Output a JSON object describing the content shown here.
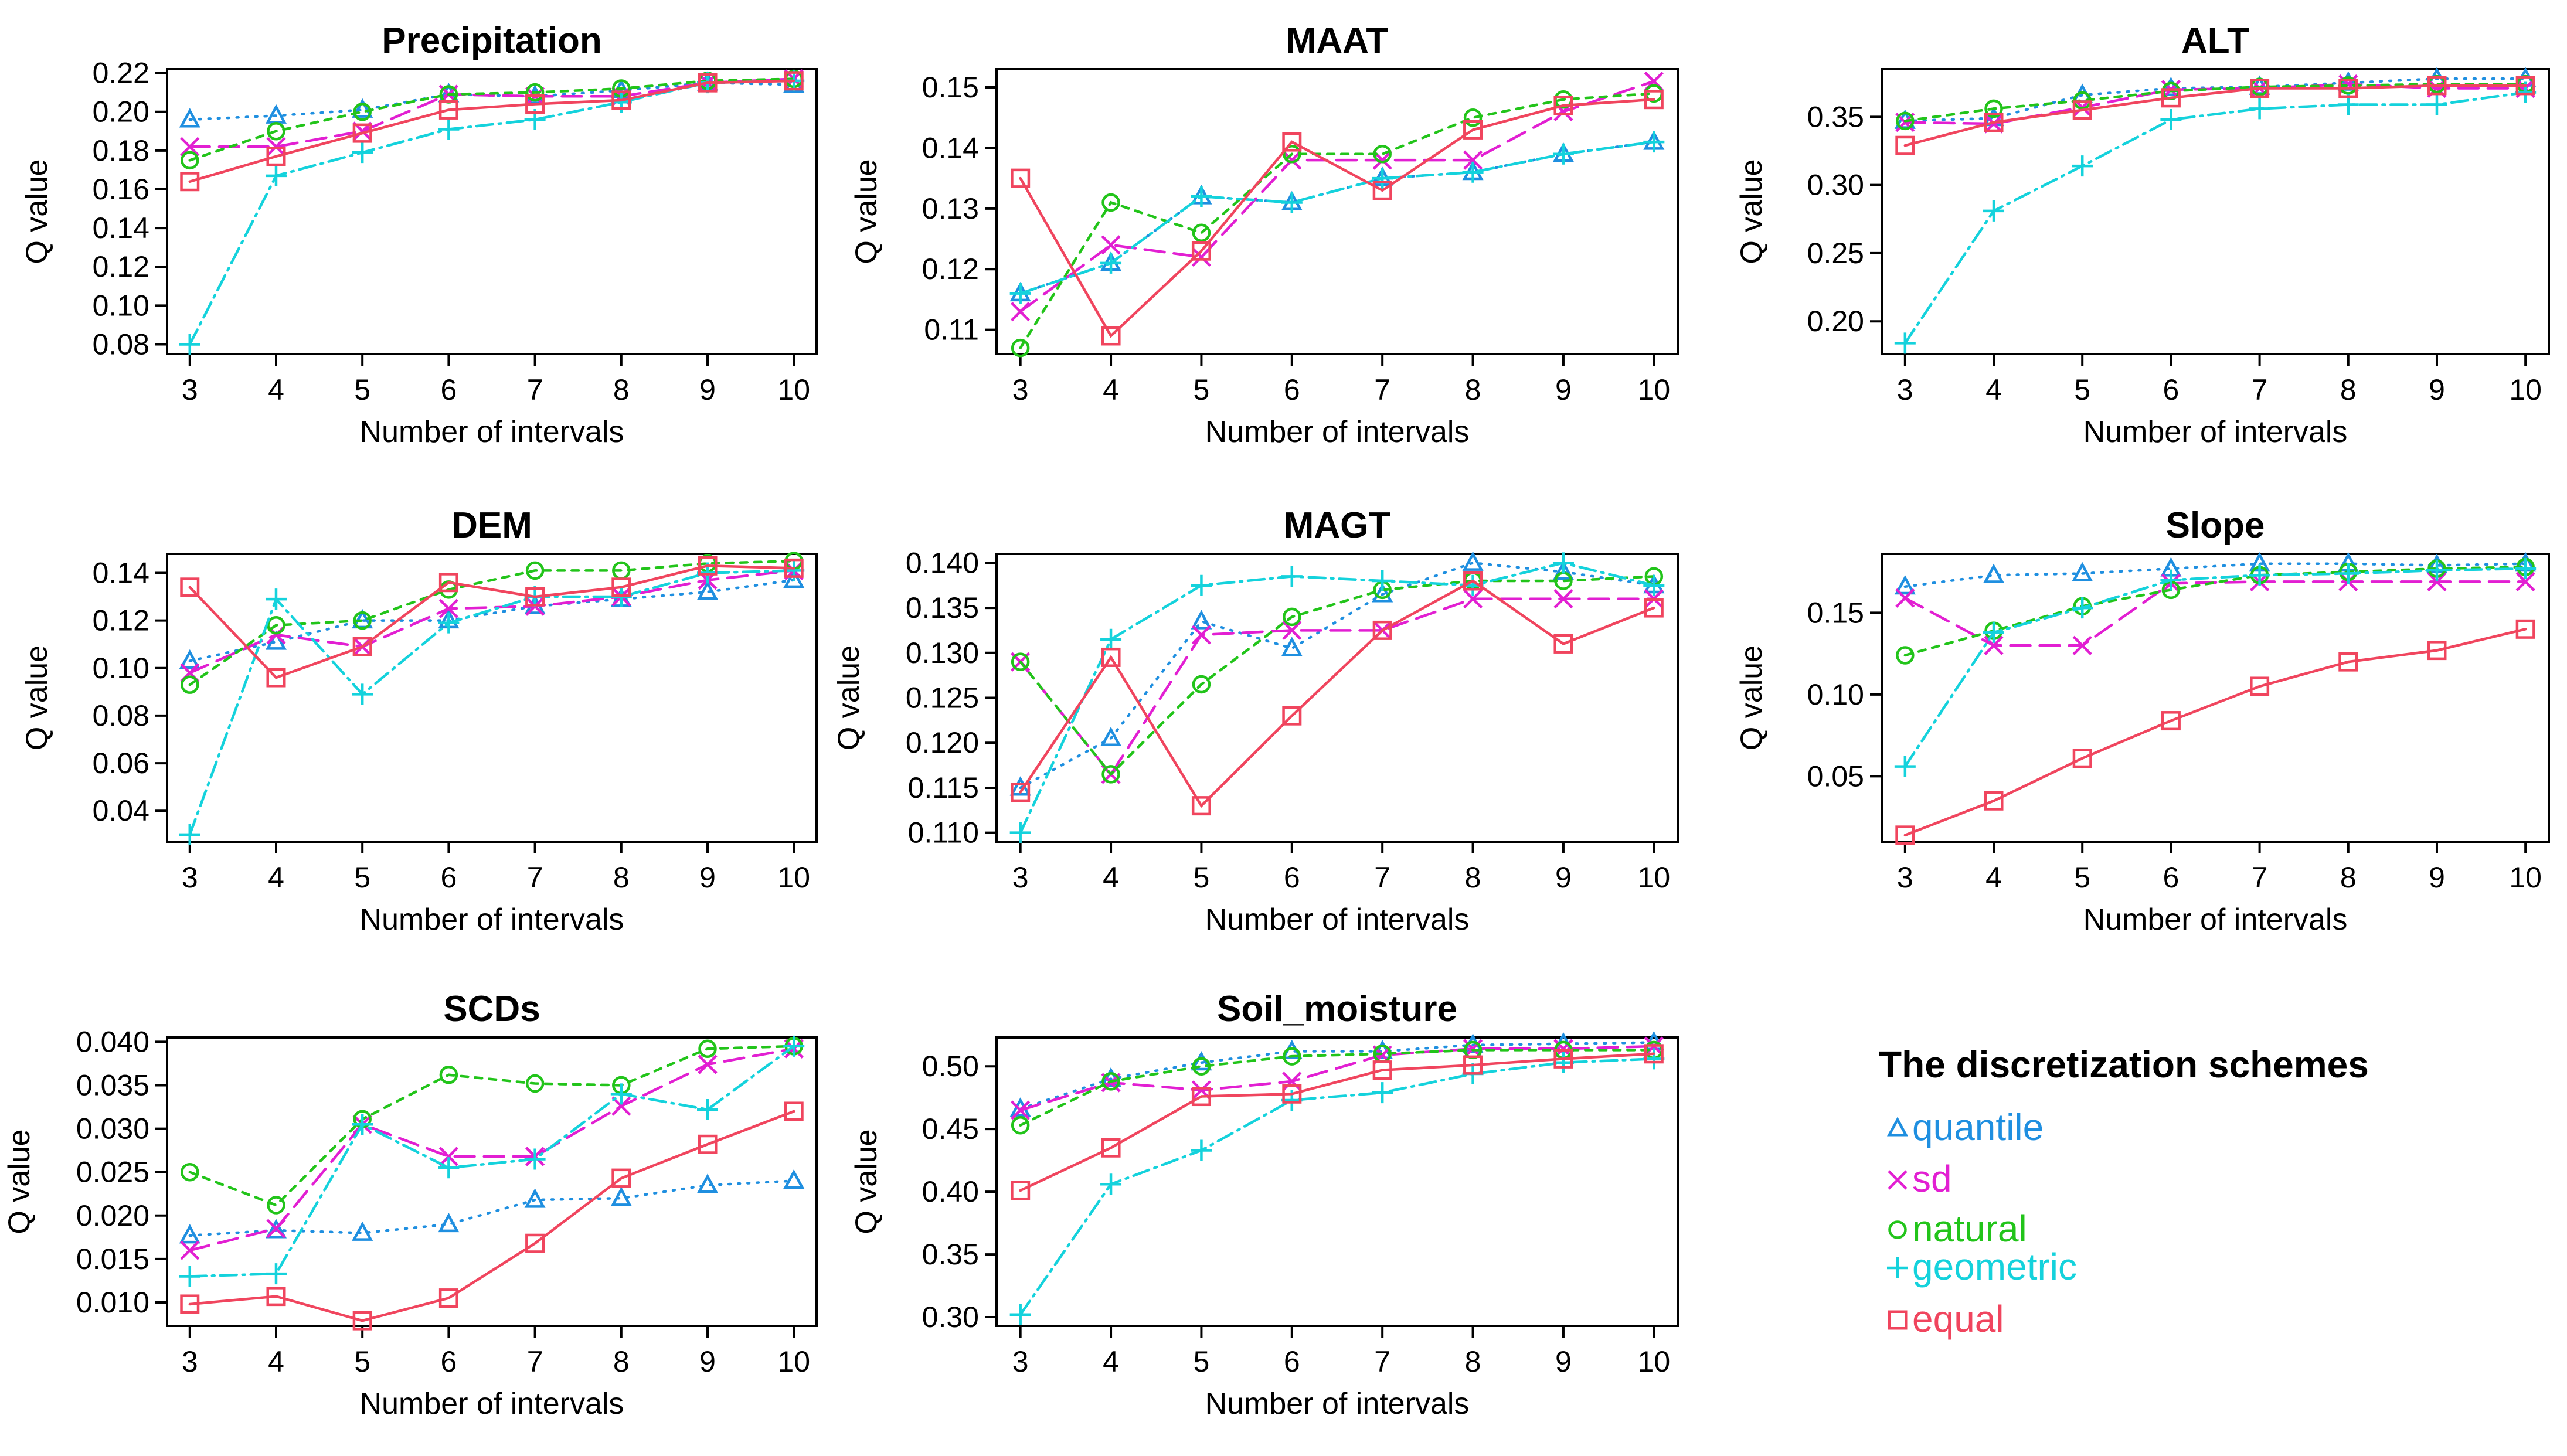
{
  "colors": {
    "quantile": "#1f8fe0",
    "sd": "#e21fd2",
    "natural": "#22c41a",
    "geometric": "#14d2dc",
    "equal": "#f0455e"
  },
  "legend": {
    "title": "The discretization schemes",
    "items": [
      {
        "key": "quantile",
        "label": "quantile",
        "marker": "triangle"
      },
      {
        "key": "sd",
        "label": "sd",
        "marker": "cross"
      },
      {
        "key": "natural",
        "label": "natural",
        "marker": "circle"
      },
      {
        "key": "geometric",
        "label": "geometric",
        "marker": "plus"
      },
      {
        "key": "equal",
        "label": "equal",
        "marker": "square"
      }
    ]
  },
  "chart_data": [
    {
      "type": "line",
      "title": "Precipitation",
      "xlabel": "Number of intervals",
      "ylabel": "Q value",
      "x": [
        3,
        4,
        5,
        6,
        7,
        8,
        9,
        10
      ],
      "ylim": [
        0.075,
        0.222
      ],
      "yticks": [
        "0.08",
        "0.10",
        "0.12",
        "0.14",
        "0.16",
        "0.18",
        "0.20",
        "0.22"
      ],
      "series": [
        {
          "name": "quantile",
          "values": [
            0.196,
            0.198,
            0.201,
            0.209,
            0.208,
            0.211,
            0.215,
            0.214
          ]
        },
        {
          "name": "sd",
          "values": [
            0.182,
            0.182,
            0.19,
            0.209,
            0.208,
            0.208,
            0.215,
            0.217
          ]
        },
        {
          "name": "natural",
          "values": [
            0.175,
            0.19,
            0.2,
            0.209,
            0.21,
            0.212,
            0.216,
            0.217
          ]
        },
        {
          "name": "geometric",
          "values": [
            0.08,
            0.167,
            0.179,
            0.191,
            0.196,
            0.205,
            0.215,
            0.216
          ]
        },
        {
          "name": "equal",
          "values": [
            0.164,
            0.177,
            0.189,
            0.201,
            0.204,
            0.206,
            0.215,
            0.216
          ]
        }
      ]
    },
    {
      "type": "line",
      "title": "MAAT",
      "xlabel": "Number of intervals",
      "ylabel": "Q value",
      "x": [
        3,
        4,
        5,
        6,
        7,
        8,
        9,
        10
      ],
      "ylim": [
        0.106,
        0.153
      ],
      "yticks": [
        "0.11",
        "0.12",
        "0.13",
        "0.14",
        "0.15"
      ],
      "series": [
        {
          "name": "quantile",
          "values": [
            0.116,
            0.121,
            0.132,
            0.131,
            0.135,
            0.136,
            0.139,
            0.141
          ]
        },
        {
          "name": "sd",
          "values": [
            0.113,
            0.124,
            0.122,
            0.138,
            0.138,
            0.138,
            0.146,
            0.151
          ]
        },
        {
          "name": "natural",
          "values": [
            0.107,
            0.131,
            0.126,
            0.139,
            0.139,
            0.145,
            0.148,
            0.149
          ]
        },
        {
          "name": "geometric",
          "values": [
            0.116,
            0.121,
            0.132,
            0.131,
            0.135,
            0.136,
            0.139,
            0.141
          ]
        },
        {
          "name": "equal",
          "values": [
            0.135,
            0.109,
            0.123,
            0.141,
            0.133,
            0.143,
            0.147,
            0.148
          ]
        }
      ]
    },
    {
      "type": "line",
      "title": "ALT",
      "xlabel": "Number of intervals",
      "ylabel": "Q value",
      "x": [
        3,
        4,
        5,
        6,
        7,
        8,
        9,
        10
      ],
      "ylim": [
        0.176,
        0.385
      ],
      "yticks": [
        "0.20",
        "0.25",
        "0.30",
        "0.35"
      ],
      "series": [
        {
          "name": "quantile",
          "values": [
            0.347,
            0.349,
            0.366,
            0.371,
            0.372,
            0.375,
            0.378,
            0.378
          ]
        },
        {
          "name": "sd",
          "values": [
            0.346,
            0.345,
            0.357,
            0.37,
            0.371,
            0.374,
            0.371,
            0.371
          ]
        },
        {
          "name": "natural",
          "values": [
            0.347,
            0.356,
            0.362,
            0.369,
            0.372,
            0.373,
            0.374,
            0.374
          ]
        },
        {
          "name": "geometric",
          "values": [
            0.184,
            0.281,
            0.314,
            0.348,
            0.356,
            0.359,
            0.359,
            0.368
          ]
        },
        {
          "name": "equal",
          "values": [
            0.329,
            0.346,
            0.355,
            0.364,
            0.371,
            0.371,
            0.373,
            0.373
          ]
        }
      ]
    },
    {
      "type": "line",
      "title": "DEM",
      "xlabel": "Number of intervals",
      "ylabel": "Q value",
      "x": [
        3,
        4,
        5,
        6,
        7,
        8,
        9,
        10
      ],
      "ylim": [
        0.027,
        0.148
      ],
      "yticks": [
        "0.04",
        "0.06",
        "0.08",
        "0.10",
        "0.12",
        "0.14"
      ],
      "series": [
        {
          "name": "quantile",
          "values": [
            0.103,
            0.111,
            0.12,
            0.12,
            0.126,
            0.129,
            0.132,
            0.137
          ]
        },
        {
          "name": "sd",
          "values": [
            0.098,
            0.114,
            0.109,
            0.125,
            0.126,
            0.13,
            0.137,
            0.141
          ]
        },
        {
          "name": "natural",
          "values": [
            0.093,
            0.118,
            0.12,
            0.133,
            0.141,
            0.141,
            0.144,
            0.145
          ]
        },
        {
          "name": "geometric",
          "values": [
            0.03,
            0.129,
            0.089,
            0.119,
            0.13,
            0.13,
            0.14,
            0.141
          ]
        },
        {
          "name": "equal",
          "values": [
            0.134,
            0.096,
            0.109,
            0.136,
            0.13,
            0.134,
            0.143,
            0.142
          ]
        }
      ]
    },
    {
      "type": "line",
      "title": "MAGT",
      "xlabel": "Number of intervals",
      "ylabel": "Q value",
      "x": [
        3,
        4,
        5,
        6,
        7,
        8,
        9,
        10
      ],
      "ylim": [
        0.109,
        0.141
      ],
      "yticks": [
        "0.110",
        "0.115",
        "0.120",
        "0.125",
        "0.130",
        "0.135",
        "0.140"
      ],
      "series": [
        {
          "name": "quantile",
          "values": [
            0.115,
            0.1205,
            0.1335,
            0.1305,
            0.1365,
            0.14,
            0.139,
            0.1375
          ]
        },
        {
          "name": "sd",
          "values": [
            0.129,
            0.1165,
            0.132,
            0.1325,
            0.1325,
            0.136,
            0.136,
            0.136
          ]
        },
        {
          "name": "natural",
          "values": [
            0.129,
            0.1165,
            0.1265,
            0.134,
            0.137,
            0.138,
            0.138,
            0.1385
          ]
        },
        {
          "name": "geometric",
          "values": [
            0.11,
            0.1315,
            0.1375,
            0.1385,
            0.138,
            0.1375,
            0.14,
            0.1375
          ]
        },
        {
          "name": "equal",
          "values": [
            0.1145,
            0.1295,
            0.113,
            0.123,
            0.1325,
            0.138,
            0.131,
            0.135
          ]
        }
      ]
    },
    {
      "type": "line",
      "title": "Slope",
      "xlabel": "Number of intervals",
      "ylabel": "Q value",
      "x": [
        3,
        4,
        5,
        6,
        7,
        8,
        9,
        10
      ],
      "ylim": [
        0.01,
        0.186
      ],
      "yticks": [
        "0.05",
        "0.10",
        "0.15"
      ],
      "series": [
        {
          "name": "quantile",
          "values": [
            0.166,
            0.173,
            0.174,
            0.177,
            0.18,
            0.18,
            0.179,
            0.18
          ]
        },
        {
          "name": "sd",
          "values": [
            0.159,
            0.13,
            0.13,
            0.168,
            0.169,
            0.169,
            0.169,
            0.169
          ]
        },
        {
          "name": "natural",
          "values": [
            0.124,
            0.139,
            0.154,
            0.164,
            0.173,
            0.175,
            0.177,
            0.178
          ]
        },
        {
          "name": "geometric",
          "values": [
            0.056,
            0.138,
            0.153,
            0.17,
            0.173,
            0.174,
            0.176,
            0.177
          ]
        },
        {
          "name": "equal",
          "values": [
            0.014,
            0.035,
            0.061,
            0.084,
            0.105,
            0.12,
            0.127,
            0.14
          ]
        }
      ]
    },
    {
      "type": "line",
      "title": "SCDs",
      "xlabel": "Number of intervals",
      "ylabel": "Q value",
      "x": [
        3,
        4,
        5,
        6,
        7,
        8,
        9,
        10
      ],
      "ylim": [
        0.0073,
        0.0405
      ],
      "yticks": [
        "0.010",
        "0.015",
        "0.020",
        "0.025",
        "0.030",
        "0.035",
        "0.040"
      ],
      "series": [
        {
          "name": "quantile",
          "values": [
            0.0177,
            0.0183,
            0.018,
            0.019,
            0.0218,
            0.022,
            0.0235,
            0.024
          ]
        },
        {
          "name": "sd",
          "values": [
            0.016,
            0.0185,
            0.0305,
            0.0268,
            0.0268,
            0.0326,
            0.0374,
            0.0392
          ]
        },
        {
          "name": "natural",
          "values": [
            0.025,
            0.0212,
            0.0311,
            0.0362,
            0.0352,
            0.035,
            0.0392,
            0.0395
          ]
        },
        {
          "name": "geometric",
          "values": [
            0.013,
            0.0133,
            0.0305,
            0.0255,
            0.0265,
            0.034,
            0.0322,
            0.0395
          ]
        },
        {
          "name": "equal",
          "values": [
            0.0098,
            0.0107,
            0.0079,
            0.0105,
            0.0168,
            0.0243,
            0.0282,
            0.032
          ]
        }
      ]
    },
    {
      "type": "line",
      "title": "Soil_moisture",
      "xlabel": "Number of intervals",
      "ylabel": "Q value",
      "x": [
        3,
        4,
        5,
        6,
        7,
        8,
        9,
        10
      ],
      "ylim": [
        0.293,
        0.523
      ],
      "yticks": [
        "0.30",
        "0.35",
        "0.40",
        "0.45",
        "0.50"
      ],
      "series": [
        {
          "name": "quantile",
          "values": [
            0.466,
            0.49,
            0.503,
            0.512,
            0.512,
            0.517,
            0.518,
            0.519
          ]
        },
        {
          "name": "sd",
          "values": [
            0.465,
            0.487,
            0.481,
            0.488,
            0.509,
            0.514,
            0.514,
            0.516
          ]
        },
        {
          "name": "natural",
          "values": [
            0.453,
            0.488,
            0.5,
            0.508,
            0.51,
            0.513,
            0.513,
            0.513
          ]
        },
        {
          "name": "geometric",
          "values": [
            0.302,
            0.406,
            0.433,
            0.473,
            0.479,
            0.494,
            0.503,
            0.506
          ]
        },
        {
          "name": "equal",
          "values": [
            0.401,
            0.435,
            0.476,
            0.478,
            0.497,
            0.501,
            0.506,
            0.51
          ]
        }
      ]
    }
  ]
}
